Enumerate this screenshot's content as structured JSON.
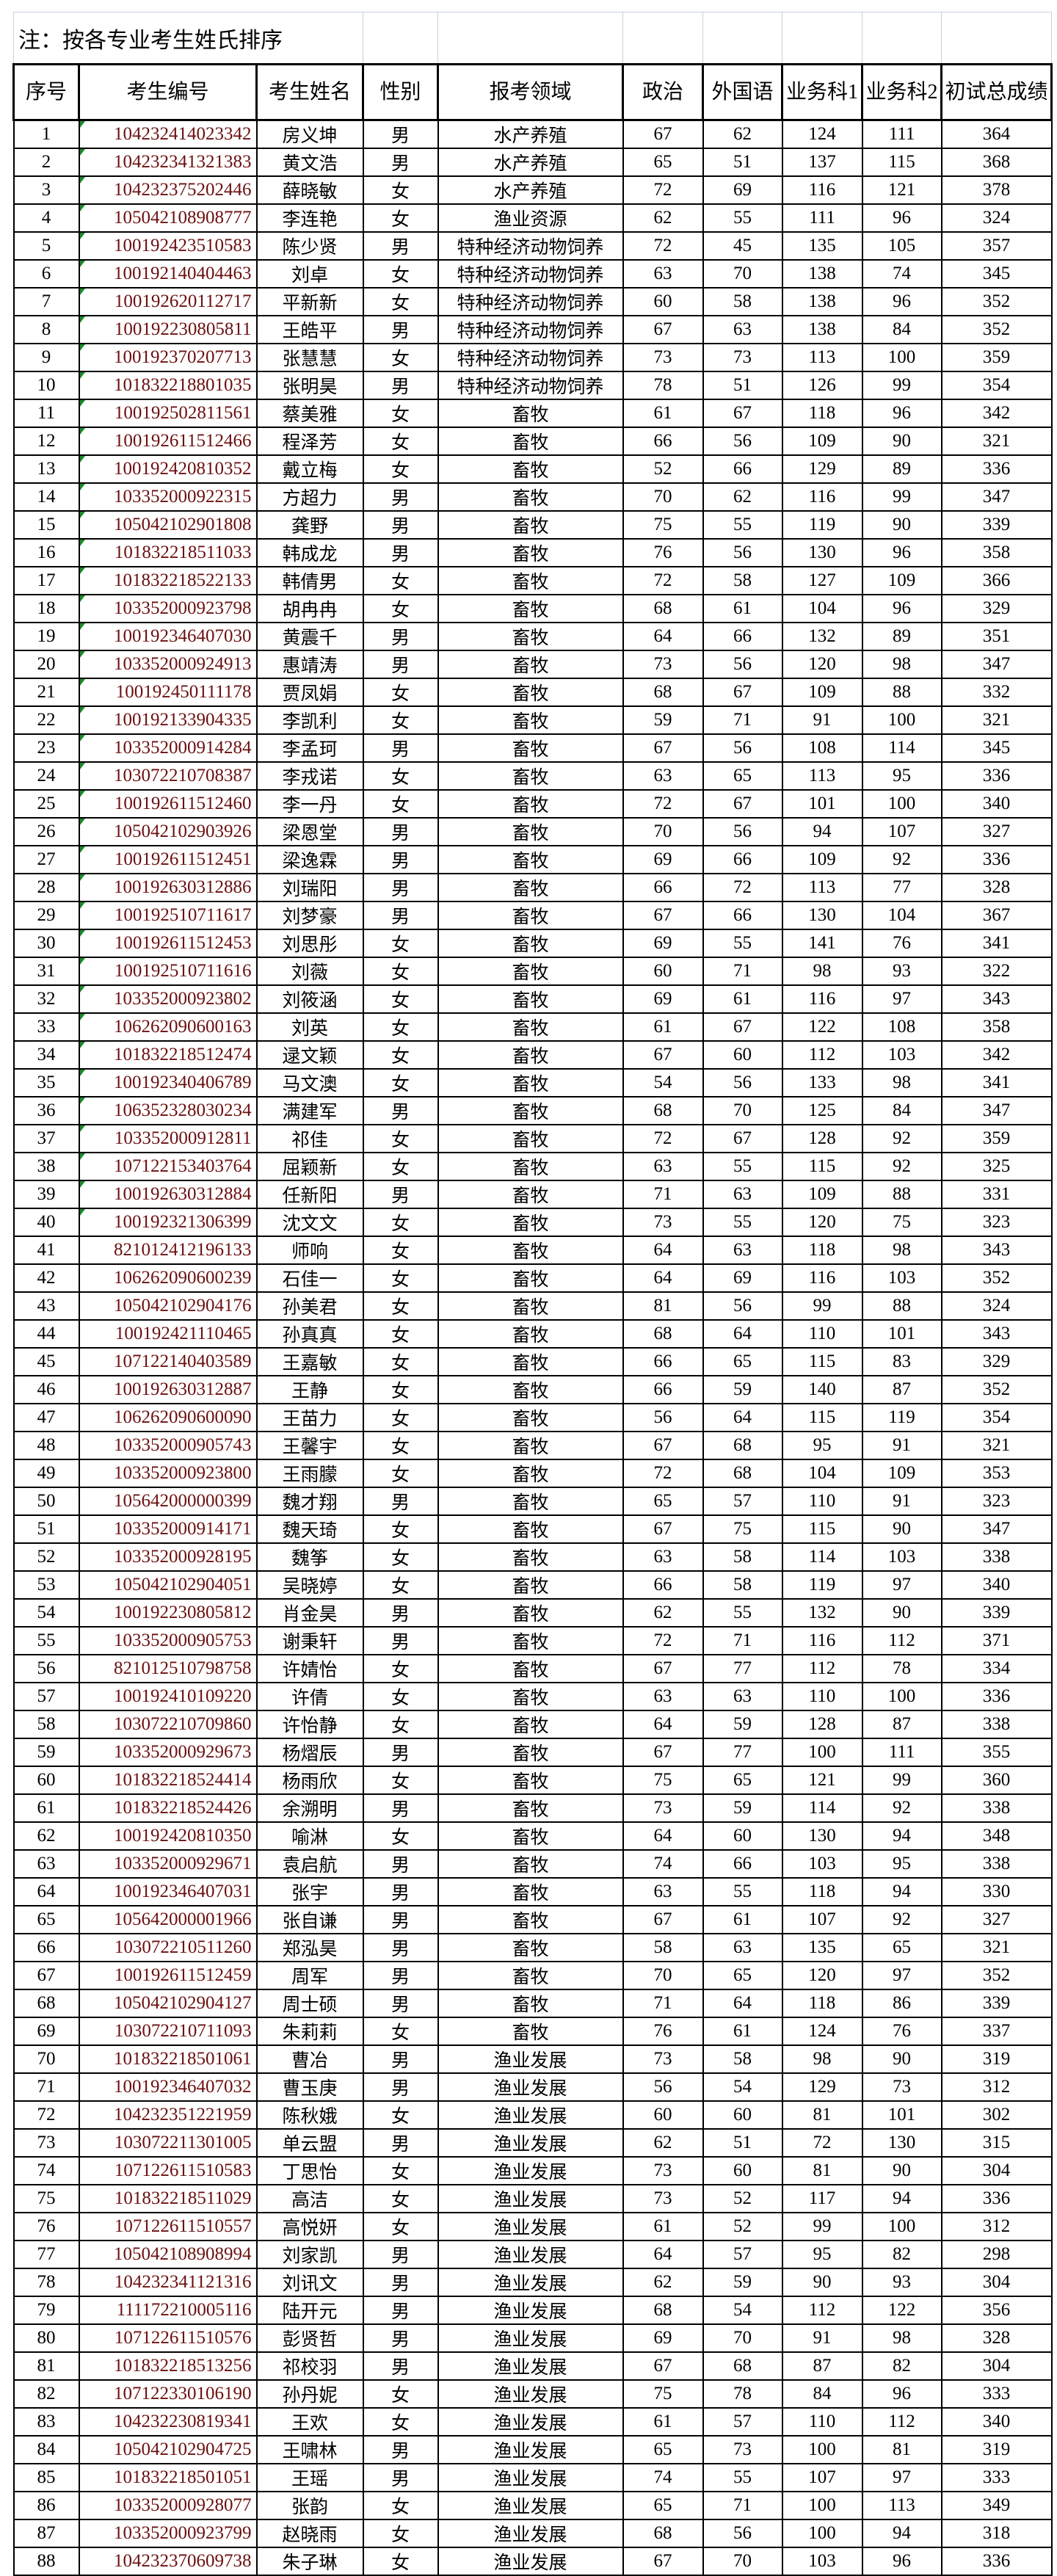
{
  "note": "注：按各专业考生姓氏排序",
  "headers": [
    "序号",
    "考生编号",
    "考生姓名",
    "性别",
    "报考领域",
    "政治",
    "外国语",
    "业务科1",
    "业务科2",
    "初试总成绩"
  ],
  "flag_color": "#1a8a2a",
  "id_text_color": "#6b0f0f",
  "rows": [
    [
      "1",
      "104232414023342",
      "房义坤",
      "男",
      "水产养殖",
      "67",
      "62",
      "124",
      "111",
      "364"
    ],
    [
      "2",
      "104232341321383",
      "黄文浩",
      "男",
      "水产养殖",
      "65",
      "51",
      "137",
      "115",
      "368"
    ],
    [
      "3",
      "104232375202446",
      "薛晓敏",
      "女",
      "水产养殖",
      "72",
      "69",
      "116",
      "121",
      "378"
    ],
    [
      "4",
      "105042108908777",
      "李连艳",
      "女",
      "渔业资源",
      "62",
      "55",
      "111",
      "96",
      "324"
    ],
    [
      "5",
      "100192423510583",
      "陈少贤",
      "男",
      "特种经济动物饲养",
      "72",
      "45",
      "135",
      "105",
      "357"
    ],
    [
      "6",
      "100192140404463",
      "刘卓",
      "女",
      "特种经济动物饲养",
      "63",
      "70",
      "138",
      "74",
      "345"
    ],
    [
      "7",
      "100192620112717",
      "平新新",
      "女",
      "特种经济动物饲养",
      "60",
      "58",
      "138",
      "96",
      "352"
    ],
    [
      "8",
      "100192230805811",
      "王皓平",
      "男",
      "特种经济动物饲养",
      "67",
      "63",
      "138",
      "84",
      "352"
    ],
    [
      "9",
      "100192370207713",
      "张慧慧",
      "女",
      "特种经济动物饲养",
      "73",
      "73",
      "113",
      "100",
      "359"
    ],
    [
      "10",
      "101832218801035",
      "张明昊",
      "男",
      "特种经济动物饲养",
      "78",
      "51",
      "126",
      "99",
      "354"
    ],
    [
      "11",
      "100192502811561",
      "蔡美雅",
      "女",
      "畜牧",
      "61",
      "67",
      "118",
      "96",
      "342"
    ],
    [
      "12",
      "100192611512466",
      "程泽芳",
      "女",
      "畜牧",
      "66",
      "56",
      "109",
      "90",
      "321"
    ],
    [
      "13",
      "100192420810352",
      "戴立梅",
      "女",
      "畜牧",
      "52",
      "66",
      "129",
      "89",
      "336"
    ],
    [
      "14",
      "103352000922315",
      "方超力",
      "男",
      "畜牧",
      "70",
      "62",
      "116",
      "99",
      "347"
    ],
    [
      "15",
      "105042102901808",
      "龚野",
      "男",
      "畜牧",
      "75",
      "55",
      "119",
      "90",
      "339"
    ],
    [
      "16",
      "101832218511033",
      "韩成龙",
      "男",
      "畜牧",
      "76",
      "56",
      "130",
      "96",
      "358"
    ],
    [
      "17",
      "101832218522133",
      "韩倩男",
      "女",
      "畜牧",
      "72",
      "58",
      "127",
      "109",
      "366"
    ],
    [
      "18",
      "103352000923798",
      "胡冉冉",
      "女",
      "畜牧",
      "68",
      "61",
      "104",
      "96",
      "329"
    ],
    [
      "19",
      "100192346407030",
      "黄震千",
      "男",
      "畜牧",
      "64",
      "66",
      "132",
      "89",
      "351"
    ],
    [
      "20",
      "103352000924913",
      "惠靖涛",
      "男",
      "畜牧",
      "73",
      "56",
      "120",
      "98",
      "347"
    ],
    [
      "21",
      "100192450111178",
      "贾凤娟",
      "女",
      "畜牧",
      "68",
      "67",
      "109",
      "88",
      "332"
    ],
    [
      "22",
      "100192133904335",
      "李凯利",
      "女",
      "畜牧",
      "59",
      "71",
      "91",
      "100",
      "321"
    ],
    [
      "23",
      "103352000914284",
      "李孟珂",
      "男",
      "畜牧",
      "67",
      "56",
      "108",
      "114",
      "345"
    ],
    [
      "24",
      "103072210708387",
      "李戎诺",
      "女",
      "畜牧",
      "63",
      "65",
      "113",
      "95",
      "336"
    ],
    [
      "25",
      "100192611512460",
      "李一丹",
      "女",
      "畜牧",
      "72",
      "67",
      "101",
      "100",
      "340"
    ],
    [
      "26",
      "105042102903926",
      "梁恩堂",
      "男",
      "畜牧",
      "70",
      "56",
      "94",
      "107",
      "327"
    ],
    [
      "27",
      "100192611512451",
      "梁逸霖",
      "男",
      "畜牧",
      "69",
      "66",
      "109",
      "92",
      "336"
    ],
    [
      "28",
      "100192630312886",
      "刘瑞阳",
      "男",
      "畜牧",
      "66",
      "72",
      "113",
      "77",
      "328"
    ],
    [
      "29",
      "100192510711617",
      "刘梦豪",
      "男",
      "畜牧",
      "67",
      "66",
      "130",
      "104",
      "367"
    ],
    [
      "30",
      "100192611512453",
      "刘思彤",
      "女",
      "畜牧",
      "69",
      "55",
      "141",
      "76",
      "341"
    ],
    [
      "31",
      "100192510711616",
      "刘薇",
      "女",
      "畜牧",
      "60",
      "71",
      "98",
      "93",
      "322"
    ],
    [
      "32",
      "103352000923802",
      "刘筱涵",
      "女",
      "畜牧",
      "69",
      "61",
      "116",
      "97",
      "343"
    ],
    [
      "33",
      "106262090600163",
      "刘英",
      "女",
      "畜牧",
      "61",
      "67",
      "122",
      "108",
      "358"
    ],
    [
      "34",
      "101832218512474",
      "逯文颖",
      "女",
      "畜牧",
      "67",
      "60",
      "112",
      "103",
      "342"
    ],
    [
      "35",
      "100192340406789",
      "马文澳",
      "女",
      "畜牧",
      "54",
      "56",
      "133",
      "98",
      "341"
    ],
    [
      "36",
      "106352328030234",
      "满建军",
      "男",
      "畜牧",
      "68",
      "70",
      "125",
      "84",
      "347"
    ],
    [
      "37",
      "103352000912811",
      "祁佳",
      "女",
      "畜牧",
      "72",
      "67",
      "128",
      "92",
      "359"
    ],
    [
      "38",
      "107122153403764",
      "屈颖新",
      "女",
      "畜牧",
      "63",
      "55",
      "115",
      "92",
      "325"
    ],
    [
      "39",
      "100192630312884",
      "任新阳",
      "男",
      "畜牧",
      "71",
      "63",
      "109",
      "88",
      "331"
    ],
    [
      "40",
      "100192321306399",
      "沈文文",
      "女",
      "畜牧",
      "73",
      "55",
      "120",
      "75",
      "323"
    ],
    [
      "41",
      "821012412196133",
      "师响",
      "女",
      "畜牧",
      "64",
      "63",
      "118",
      "98",
      "343"
    ],
    [
      "42",
      "106262090600239",
      "石佳一",
      "女",
      "畜牧",
      "64",
      "69",
      "116",
      "103",
      "352"
    ],
    [
      "43",
      "105042102904176",
      "孙美君",
      "女",
      "畜牧",
      "81",
      "56",
      "99",
      "88",
      "324"
    ],
    [
      "44",
      "100192421110465",
      "孙真真",
      "女",
      "畜牧",
      "68",
      "64",
      "110",
      "101",
      "343"
    ],
    [
      "45",
      "107122140403589",
      "王嘉敏",
      "女",
      "畜牧",
      "66",
      "65",
      "115",
      "83",
      "329"
    ],
    [
      "46",
      "100192630312887",
      "王静",
      "女",
      "畜牧",
      "66",
      "59",
      "140",
      "87",
      "352"
    ],
    [
      "47",
      "106262090600090",
      "王苗力",
      "女",
      "畜牧",
      "56",
      "64",
      "115",
      "119",
      "354"
    ],
    [
      "48",
      "103352000905743",
      "王馨宇",
      "女",
      "畜牧",
      "67",
      "68",
      "95",
      "91",
      "321"
    ],
    [
      "49",
      "103352000923800",
      "王雨朦",
      "女",
      "畜牧",
      "72",
      "68",
      "104",
      "109",
      "353"
    ],
    [
      "50",
      "105642000000399",
      "魏才翔",
      "男",
      "畜牧",
      "65",
      "57",
      "110",
      "91",
      "323"
    ],
    [
      "51",
      "103352000914171",
      "魏天琦",
      "女",
      "畜牧",
      "67",
      "75",
      "115",
      "90",
      "347"
    ],
    [
      "52",
      "103352000928195",
      "魏筝",
      "女",
      "畜牧",
      "63",
      "58",
      "114",
      "103",
      "338"
    ],
    [
      "53",
      "105042102904051",
      "吴晓婷",
      "女",
      "畜牧",
      "66",
      "58",
      "119",
      "97",
      "340"
    ],
    [
      "54",
      "100192230805812",
      "肖金昊",
      "男",
      "畜牧",
      "62",
      "55",
      "132",
      "90",
      "339"
    ],
    [
      "55",
      "103352000905753",
      "谢秉轩",
      "男",
      "畜牧",
      "72",
      "71",
      "116",
      "112",
      "371"
    ],
    [
      "56",
      "821012510798758",
      "许婧怡",
      "女",
      "畜牧",
      "67",
      "77",
      "112",
      "78",
      "334"
    ],
    [
      "57",
      "100192410109220",
      "许倩",
      "女",
      "畜牧",
      "63",
      "63",
      "110",
      "100",
      "336"
    ],
    [
      "58",
      "103072210709860",
      "许怡静",
      "女",
      "畜牧",
      "64",
      "59",
      "128",
      "87",
      "338"
    ],
    [
      "59",
      "103352000929673",
      "杨熠辰",
      "男",
      "畜牧",
      "67",
      "77",
      "100",
      "111",
      "355"
    ],
    [
      "60",
      "101832218524414",
      "杨雨欣",
      "女",
      "畜牧",
      "75",
      "65",
      "121",
      "99",
      "360"
    ],
    [
      "61",
      "101832218524426",
      "余溯明",
      "男",
      "畜牧",
      "73",
      "59",
      "114",
      "92",
      "338"
    ],
    [
      "62",
      "100192420810350",
      "喻淋",
      "女",
      "畜牧",
      "64",
      "60",
      "130",
      "94",
      "348"
    ],
    [
      "63",
      "103352000929671",
      "袁启航",
      "男",
      "畜牧",
      "74",
      "66",
      "103",
      "95",
      "338"
    ],
    [
      "64",
      "100192346407031",
      "张宇",
      "男",
      "畜牧",
      "63",
      "55",
      "118",
      "94",
      "330"
    ],
    [
      "65",
      "105642000001966",
      "张自谦",
      "男",
      "畜牧",
      "67",
      "61",
      "107",
      "92",
      "327"
    ],
    [
      "66",
      "103072210511260",
      "郑泓昊",
      "男",
      "畜牧",
      "58",
      "63",
      "135",
      "65",
      "321"
    ],
    [
      "67",
      "100192611512459",
      "周军",
      "男",
      "畜牧",
      "70",
      "65",
      "120",
      "97",
      "352"
    ],
    [
      "68",
      "105042102904127",
      "周士硕",
      "男",
      "畜牧",
      "71",
      "64",
      "118",
      "86",
      "339"
    ],
    [
      "69",
      "103072210711093",
      "朱莉莉",
      "女",
      "畜牧",
      "76",
      "61",
      "124",
      "76",
      "337"
    ],
    [
      "70",
      "101832218501061",
      "曹冶",
      "男",
      "渔业发展",
      "73",
      "58",
      "98",
      "90",
      "319"
    ],
    [
      "71",
      "100192346407032",
      "曹玉庚",
      "男",
      "渔业发展",
      "56",
      "54",
      "129",
      "73",
      "312"
    ],
    [
      "72",
      "104232351221959",
      "陈秋娥",
      "女",
      "渔业发展",
      "60",
      "60",
      "81",
      "101",
      "302"
    ],
    [
      "73",
      "103072211301005",
      "单云盟",
      "男",
      "渔业发展",
      "62",
      "51",
      "72",
      "130",
      "315"
    ],
    [
      "74",
      "107122611510583",
      "丁思怡",
      "女",
      "渔业发展",
      "73",
      "60",
      "81",
      "90",
      "304"
    ],
    [
      "75",
      "101832218511029",
      "高洁",
      "女",
      "渔业发展",
      "73",
      "52",
      "117",
      "94",
      "336"
    ],
    [
      "76",
      "107122611510557",
      "高悦妍",
      "女",
      "渔业发展",
      "61",
      "52",
      "99",
      "100",
      "312"
    ],
    [
      "77",
      "105042108908994",
      "刘家凯",
      "男",
      "渔业发展",
      "64",
      "57",
      "95",
      "82",
      "298"
    ],
    [
      "78",
      "104232341121316",
      "刘讯文",
      "男",
      "渔业发展",
      "62",
      "59",
      "90",
      "93",
      "304"
    ],
    [
      "79",
      "111172210005116",
      "陆开元",
      "男",
      "渔业发展",
      "68",
      "54",
      "112",
      "122",
      "356"
    ],
    [
      "80",
      "107122611510576",
      "彭贤哲",
      "男",
      "渔业发展",
      "69",
      "70",
      "91",
      "98",
      "328"
    ],
    [
      "81",
      "101832218513256",
      "祁校羽",
      "男",
      "渔业发展",
      "67",
      "68",
      "87",
      "82",
      "304"
    ],
    [
      "82",
      "107122330106190",
      "孙丹妮",
      "女",
      "渔业发展",
      "75",
      "78",
      "84",
      "96",
      "333"
    ],
    [
      "83",
      "104232230819341",
      "王欢",
      "女",
      "渔业发展",
      "61",
      "57",
      "110",
      "112",
      "340"
    ],
    [
      "84",
      "105042102904725",
      "王啸林",
      "男",
      "渔业发展",
      "65",
      "73",
      "100",
      "81",
      "319"
    ],
    [
      "85",
      "101832218501051",
      "王瑶",
      "男",
      "渔业发展",
      "74",
      "55",
      "107",
      "97",
      "333"
    ],
    [
      "86",
      "103352000928077",
      "张韵",
      "女",
      "渔业发展",
      "65",
      "71",
      "100",
      "113",
      "349"
    ],
    [
      "87",
      "103352000923799",
      "赵晓雨",
      "女",
      "渔业发展",
      "68",
      "56",
      "100",
      "94",
      "318"
    ],
    [
      "88",
      "104232370609738",
      "朱子琳",
      "女",
      "渔业发展",
      "67",
      "70",
      "103",
      "96",
      "336"
    ]
  ],
  "flagged_rows": 40
}
